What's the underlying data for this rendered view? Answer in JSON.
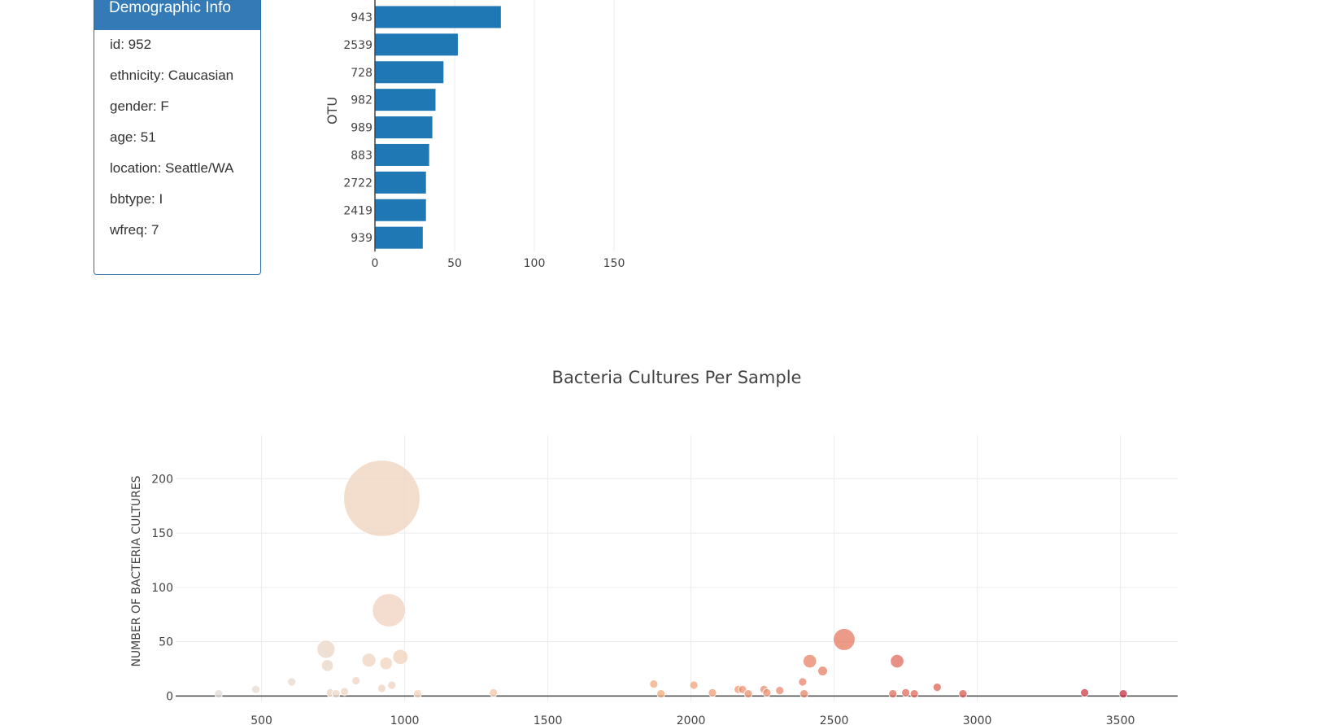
{
  "metadata_panel": {
    "title": "Demographic Info",
    "rows": [
      "id: 952",
      "ethnicity: Caucasian",
      "gender: F",
      "age: 51",
      "location: Seattle/WA",
      "bbtype: I",
      "wfreq: 7"
    ]
  },
  "chart_data": [
    {
      "type": "bar",
      "orientation": "horizontal",
      "title": "",
      "xlabel": "",
      "ylabel": "OTU",
      "xlim": [
        0,
        160
      ],
      "xticks": [
        0,
        50,
        100,
        150
      ],
      "categories": [
        "943",
        "2539",
        "728",
        "982",
        "989",
        "883",
        "2722",
        "2419",
        "939"
      ],
      "values": [
        79,
        52,
        43,
        38,
        36,
        34,
        32,
        32,
        30
      ],
      "color": "#1f77b4",
      "grid": true
    },
    {
      "type": "scatter",
      "subtype": "bubble",
      "title": "Bacteria Cultures Per Sample",
      "xlabel": "",
      "ylabel": "NUMBER OF BACTERIA CULTURES",
      "xlim": [
        200,
        3700
      ],
      "ylim": [
        -5,
        240
      ],
      "xticks": [
        500,
        1000,
        1500,
        2000,
        2500,
        3000,
        3500
      ],
      "yticks": [
        0,
        50,
        100,
        150,
        200
      ],
      "colorscale": [
        "#e1dcd8",
        "#f4d0b6",
        "#f2a77c",
        "#e16a5a",
        "#c62b3b"
      ],
      "grid": true,
      "x": [
        350,
        480,
        605,
        725,
        730,
        740,
        760,
        790,
        830,
        875,
        920,
        920,
        935,
        945,
        955,
        985,
        1045,
        1310,
        1870,
        1895,
        2010,
        2075,
        2165,
        2180,
        2200,
        2255,
        2265,
        2310,
        2390,
        2395,
        2415,
        2460,
        2535,
        2705,
        2720,
        2750,
        2780,
        2860,
        2950,
        3375,
        3510
      ],
      "y": [
        2,
        6,
        13,
        43,
        28,
        3,
        2,
        4,
        14,
        33,
        182,
        7,
        30,
        79,
        10,
        36,
        2,
        3,
        11,
        2,
        10,
        3,
        6,
        6,
        2,
        6,
        3,
        5,
        13,
        2,
        32,
        23,
        52,
        2,
        32,
        3,
        2,
        8,
        2,
        3,
        2
      ]
    }
  ]
}
